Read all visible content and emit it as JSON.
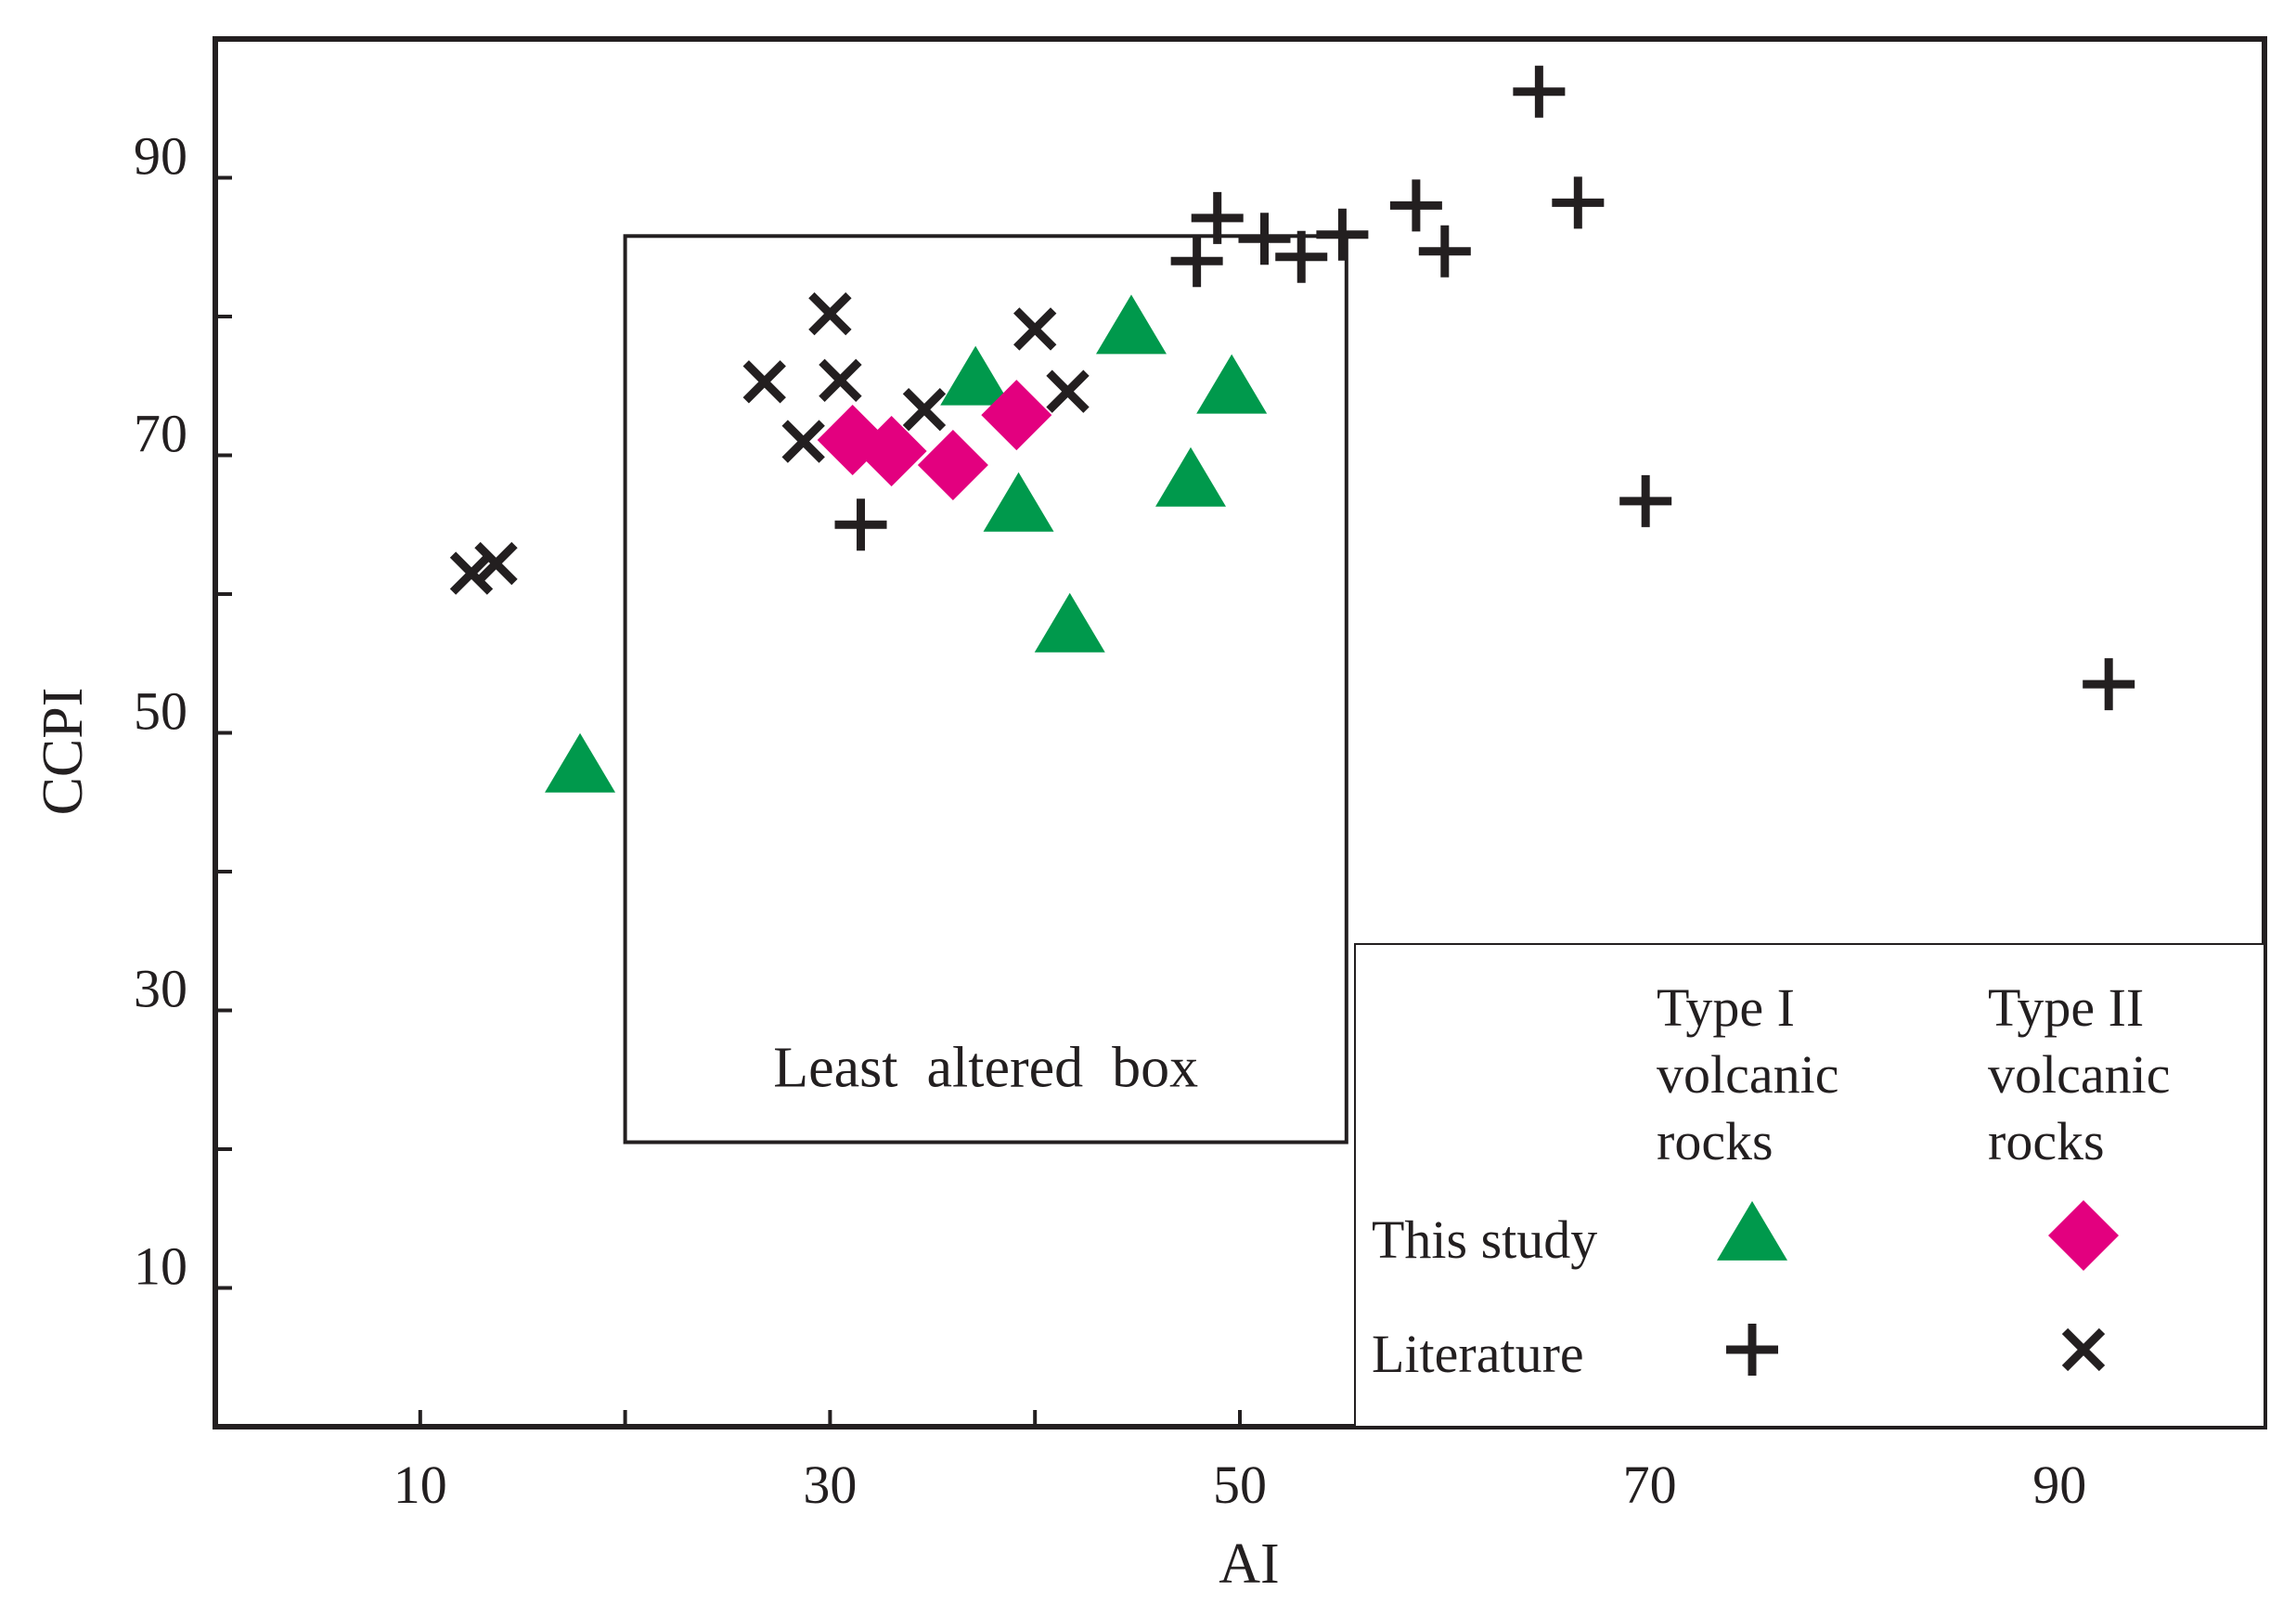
{
  "chart_data": {
    "type": "scatter",
    "xlabel": "AI",
    "ylabel": "CCPI",
    "xlim": [
      0,
      100
    ],
    "ylim": [
      0,
      100
    ],
    "x_ticks": [
      10,
      30,
      50,
      70,
      90
    ],
    "y_ticks": [
      10,
      30,
      50,
      70,
      90
    ],
    "grid": false,
    "annotations": [
      {
        "id": "least-altered-box",
        "label": "Least  altered  box",
        "x_range": [
          20,
          55.2
        ],
        "y_range": [
          20.5,
          85.8
        ]
      }
    ],
    "legend": {
      "position": "bottom-right",
      "columns": [
        "Type I\nvolcanic\nrocks",
        "Type II\nvolcanic\nrocks"
      ],
      "rows": [
        "This study",
        "Literature"
      ]
    },
    "series": [
      {
        "group": "Type I volcanic rocks",
        "source": "This study",
        "marker": "triangle",
        "color": "#00994c",
        "points": [
          [
            17.8,
            47.5
          ],
          [
            37.1,
            75.4
          ],
          [
            39.2,
            66.3
          ],
          [
            41.7,
            57.6
          ],
          [
            44.7,
            79.1
          ],
          [
            47.6,
            68.1
          ],
          [
            49.6,
            74.8
          ]
        ]
      },
      {
        "group": "Type II volcanic rocks",
        "source": "This study",
        "marker": "diamond",
        "color": "#e3007f",
        "points": [
          [
            31.1,
            71.1
          ],
          [
            33.0,
            70.3
          ],
          [
            36.0,
            69.3
          ],
          [
            39.1,
            72.9
          ]
        ]
      },
      {
        "group": "Type I volcanic rocks",
        "source": "Literature",
        "marker": "plus",
        "color": "#231f20",
        "points": [
          [
            31.5,
            65.0
          ],
          [
            47.9,
            84.0
          ],
          [
            48.9,
            87.1
          ],
          [
            51.2,
            85.6
          ],
          [
            53.0,
            84.3
          ],
          [
            55.0,
            85.9
          ],
          [
            58.6,
            88.0
          ],
          [
            60.0,
            84.7
          ],
          [
            64.6,
            96.2
          ],
          [
            66.5,
            88.2
          ],
          [
            69.8,
            66.7
          ],
          [
            92.4,
            53.5
          ]
        ]
      },
      {
        "group": "Type II volcanic rocks",
        "source": "Literature",
        "marker": "x",
        "color": "#231f20",
        "points": [
          [
            12.5,
            61.5
          ],
          [
            13.7,
            62.2
          ],
          [
            26.8,
            75.3
          ],
          [
            28.7,
            71.0
          ],
          [
            30.0,
            80.2
          ],
          [
            30.5,
            75.4
          ],
          [
            34.6,
            73.3
          ],
          [
            40.0,
            79.1
          ],
          [
            41.6,
            74.6
          ]
        ]
      }
    ]
  }
}
